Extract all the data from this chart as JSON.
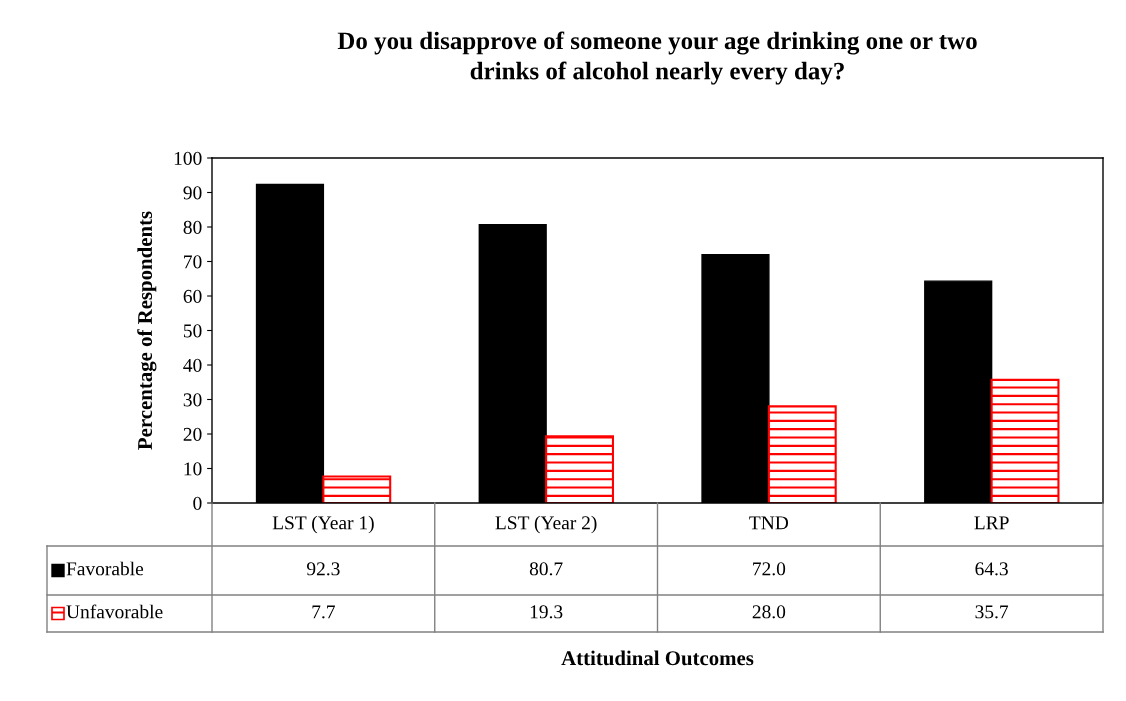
{
  "chart_data": {
    "type": "bar",
    "title": "Do you disapprove of someone your age drinking one or two\ndrinks of alcohol nearly every day?",
    "annotations": [
      "Attitudinal Outcomes"
    ],
    "ylabel": "Percentage of Respondents",
    "categories": [
      "LST (Year 1)",
      "LST (Year 2)",
      "TND",
      "LRP"
    ],
    "series": [
      {
        "name": "Favorable",
        "color": "#000000",
        "values": [
          92.3,
          80.7,
          72.0,
          64.3
        ],
        "value_labels": [
          "92.3",
          "80.7",
          "72.0",
          "64.3"
        ]
      },
      {
        "name": "Unfavorable",
        "color": "#ff0000",
        "values": [
          7.7,
          19.3,
          28.0,
          35.7
        ],
        "value_labels": [
          "7.7",
          "19.3",
          "28.0",
          "35.7"
        ]
      }
    ],
    "ylim": [
      0,
      100
    ],
    "yticks": [
      0,
      10,
      20,
      30,
      40,
      50,
      60,
      70,
      80,
      90,
      100
    ],
    "grid": false,
    "legend": "bottom"
  }
}
